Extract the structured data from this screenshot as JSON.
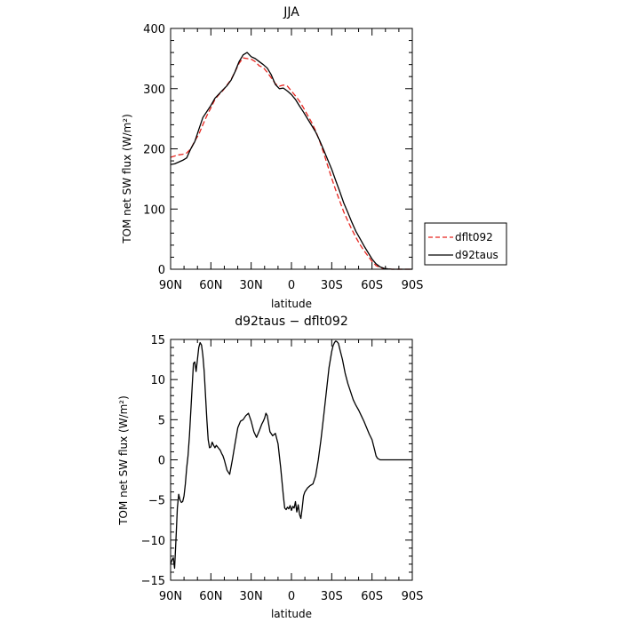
{
  "chart_data": [
    {
      "type": "line",
      "title": "JJA",
      "xlabel": "latitude",
      "ylabel": "TOM net SW flux (W/m²)",
      "xlim": [
        90,
        -90
      ],
      "ylim": [
        0,
        400
      ],
      "x_ticks": [
        90,
        60,
        30,
        0,
        -30,
        -60,
        -90
      ],
      "x_tick_labels": [
        "90N",
        "60N",
        "30N",
        "0",
        "30S",
        "60S",
        "90S"
      ],
      "y_ticks": [
        0,
        100,
        200,
        300,
        400
      ],
      "y_tick_labels": [
        "0",
        "100",
        "200",
        "300",
        "400"
      ],
      "grid": false,
      "legend_position": "right, outside plot",
      "series": [
        {
          "name": "dflt092",
          "color": "#e8251f",
          "dash": "dashed",
          "x": [
            90,
            87,
            84,
            81,
            78,
            75,
            72,
            69,
            66,
            63,
            60,
            57,
            54,
            51,
            48,
            45,
            42,
            39,
            36,
            33,
            30,
            27,
            24,
            21,
            18,
            15,
            12,
            9,
            6,
            3,
            0,
            -3,
            -6,
            -9,
            -12,
            -15,
            -18,
            -21,
            -24,
            -27,
            -30,
            -33,
            -36,
            -39,
            -42,
            -45,
            -48,
            -51,
            -54,
            -57,
            -60,
            -63,
            -66,
            -69,
            -72,
            -75,
            -78,
            -80,
            -83,
            -86,
            -90
          ],
          "values": [
            186,
            188,
            190,
            191,
            193,
            200,
            213,
            224,
            240,
            255,
            268,
            282,
            290,
            297,
            306,
            315,
            328,
            342,
            351,
            350,
            349,
            345,
            338,
            335,
            327,
            318,
            308,
            304,
            306,
            304,
            296,
            288,
            279,
            268,
            256,
            244,
            230,
            213,
            193,
            172,
            151,
            131,
            113,
            95,
            80,
            66,
            53,
            41,
            31,
            22,
            13,
            6,
            3,
            1,
            0.5,
            0,
            0,
            0,
            0,
            0,
            0
          ]
        },
        {
          "name": "d92taus",
          "color": "#000000",
          "dash": "solid",
          "x": [
            90,
            87,
            84,
            81,
            78,
            75,
            72,
            69,
            66,
            63,
            60,
            57,
            54,
            51,
            48,
            45,
            42,
            39,
            36,
            33,
            30,
            27,
            24,
            21,
            18,
            15,
            12,
            9,
            6,
            3,
            0,
            -3,
            -6,
            -9,
            -12,
            -15,
            -18,
            -21,
            -24,
            -27,
            -30,
            -33,
            -36,
            -39,
            -42,
            -45,
            -48,
            -51,
            -54,
            -57,
            -60,
            -63,
            -66,
            -69,
            -72,
            -75,
            -78,
            -80,
            -83,
            -86,
            -90
          ],
          "values": [
            174,
            175,
            178,
            181,
            185,
            200,
            212,
            232,
            252,
            262,
            272,
            284,
            291,
            298,
            305,
            314,
            328,
            345,
            356,
            360,
            353,
            350,
            345,
            340,
            334,
            323,
            307,
            300,
            301,
            296,
            290,
            282,
            271,
            261,
            250,
            239,
            228,
            214,
            198,
            182,
            166,
            147,
            129,
            110,
            94,
            78,
            63,
            51,
            39,
            28,
            17,
            9,
            4,
            1.5,
            0.5,
            0,
            0,
            0,
            0,
            0,
            0
          ]
        }
      ]
    },
    {
      "type": "line",
      "title": "d92taus − dflt092",
      "xlabel": "latitude",
      "ylabel": "TOM net SW flux (W/m²)",
      "xlim": [
        90,
        -90
      ],
      "ylim": [
        -15,
        15
      ],
      "x_ticks": [
        90,
        60,
        30,
        0,
        -30,
        -60,
        -90
      ],
      "x_tick_labels": [
        "90N",
        "60N",
        "30N",
        "0",
        "30S",
        "60S",
        "90S"
      ],
      "y_ticks": [
        -15,
        -10,
        -5,
        0,
        5,
        10,
        15
      ],
      "y_tick_labels": [
        "−15",
        "−10",
        "−5",
        "0",
        "5",
        "10",
        "15"
      ],
      "grid": false,
      "series": [
        {
          "color": "#000000",
          "dash": "solid",
          "x": [
            90,
            89,
            88,
            87,
            86,
            85,
            84,
            83,
            82,
            81,
            80,
            79,
            78,
            77,
            76,
            75,
            74,
            73,
            72,
            71,
            70,
            69,
            68,
            67,
            66,
            65,
            64,
            63,
            62,
            61,
            60,
            59,
            58,
            57,
            56,
            55,
            54,
            53,
            52,
            51,
            50,
            48,
            46,
            44,
            42,
            40,
            38,
            36,
            34,
            32,
            30,
            28,
            26,
            24,
            22,
            21,
            20,
            19,
            18,
            16,
            14,
            12,
            10,
            8,
            6,
            5,
            4,
            3,
            2,
            1,
            0,
            -1,
            -2,
            -3,
            -4,
            -5,
            -6,
            -7,
            -8,
            -9,
            -10,
            -12,
            -14,
            -16,
            -18,
            -20,
            -22,
            -24,
            -26,
            -28,
            -30,
            -31,
            -32,
            -33,
            -34,
            -35,
            -36,
            -38,
            -40,
            -42,
            -44,
            -46,
            -48,
            -50,
            -52,
            -54,
            -56,
            -58,
            -60,
            -62,
            -63,
            -64,
            -66,
            -70,
            -75,
            -80,
            -85,
            -90
          ],
          "values": [
            -13,
            -12.5,
            -12.2,
            -13.5,
            -10,
            -6,
            -4.3,
            -5,
            -5.3,
            -5.2,
            -4.5,
            -3,
            -1,
            0.5,
            3,
            6,
            9,
            12,
            12.2,
            11,
            12.5,
            14,
            14.6,
            14.3,
            13,
            11,
            8,
            5,
            2.5,
            1.5,
            1.6,
            2.2,
            1.8,
            1.5,
            1.8,
            1.6,
            1.4,
            1.2,
            0.8,
            0.5,
            0,
            -1.3,
            -1.8,
            0,
            2,
            4,
            4.8,
            5,
            5.5,
            5.8,
            4.8,
            3.5,
            2.8,
            3.6,
            4.5,
            4.8,
            5.2,
            5.8,
            5.5,
            3.5,
            3,
            3.3,
            2,
            -1,
            -4.5,
            -6,
            -6.2,
            -5.9,
            -6.1,
            -5.7,
            -6.3,
            -5.8,
            -6.0,
            -5.2,
            -6.5,
            -5.6,
            -6.8,
            -7.3,
            -6.0,
            -4.5,
            -4.0,
            -3.5,
            -3.2,
            -3.0,
            -2.0,
            0.0,
            2.5,
            5.5,
            8.5,
            11.5,
            13.5,
            14.2,
            14.6,
            14.8,
            14.7,
            14.5,
            13.8,
            12.5,
            10.8,
            9.5,
            8.5,
            7.5,
            6.8,
            6.2,
            5.5,
            4.8,
            4.0,
            3.2,
            2.5,
            1.2,
            0.5,
            0.2,
            0,
            0,
            0,
            0,
            0,
            0
          ]
        }
      ]
    }
  ]
}
